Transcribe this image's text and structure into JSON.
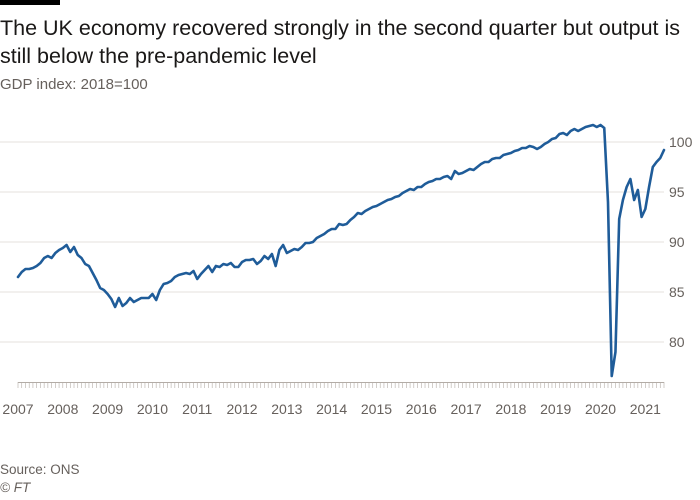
{
  "header": {
    "title": "The UK economy recovered strongly in the second quarter but output is still below the pre-pandemic level",
    "subtitle": "GDP index: 2018=100"
  },
  "footer": {
    "source": "Source: ONS",
    "credit": "© FT"
  },
  "colors": {
    "line": "#1f5c99",
    "grid": "#e6e1dc",
    "axis": "#b3aca6",
    "tick_label": "#66605c"
  },
  "chart_data": {
    "type": "line",
    "title": "The UK economy recovered strongly in the second quarter but output is still below the pre-pandemic level",
    "subtitle": "GDP index: 2018=100",
    "xlabel": "",
    "ylabel": "",
    "x_ticks": [
      "2007",
      "2008",
      "2009",
      "2010",
      "2011",
      "2012",
      "2013",
      "2014",
      "2015",
      "2016",
      "2017",
      "2018",
      "2019",
      "2020",
      "2021"
    ],
    "y_ticks": [
      80,
      85,
      90,
      95,
      100
    ],
    "xlim": [
      "2007-01",
      "2021-06"
    ],
    "ylim": [
      76,
      103
    ],
    "y_axis_side": "right",
    "grid": "horizontal",
    "series": [
      {
        "x": [
          "2007-01",
          "2007-02",
          "2007-03",
          "2007-04",
          "2007-05",
          "2007-06",
          "2007-07",
          "2007-08",
          "2007-09",
          "2007-10",
          "2007-11",
          "2007-12",
          "2008-01",
          "2008-02",
          "2008-03",
          "2008-04",
          "2008-05",
          "2008-06",
          "2008-07",
          "2008-08",
          "2008-09",
          "2008-10",
          "2008-11",
          "2008-12",
          "2009-01",
          "2009-02",
          "2009-03",
          "2009-04",
          "2009-05",
          "2009-06",
          "2009-07",
          "2009-08",
          "2009-09",
          "2009-10",
          "2009-11",
          "2009-12",
          "2010-01",
          "2010-02",
          "2010-03",
          "2010-04",
          "2010-05",
          "2010-06",
          "2010-07",
          "2010-08",
          "2010-09",
          "2010-10",
          "2010-11",
          "2010-12",
          "2011-01",
          "2011-02",
          "2011-03",
          "2011-04",
          "2011-05",
          "2011-06",
          "2011-07",
          "2011-08",
          "2011-09",
          "2011-10",
          "2011-11",
          "2011-12",
          "2012-01",
          "2012-02",
          "2012-03",
          "2012-04",
          "2012-05",
          "2012-06",
          "2012-07",
          "2012-08",
          "2012-09",
          "2012-10",
          "2012-11",
          "2012-12",
          "2013-01",
          "2013-02",
          "2013-03",
          "2013-04",
          "2013-05",
          "2013-06",
          "2013-07",
          "2013-08",
          "2013-09",
          "2013-10",
          "2013-11",
          "2013-12",
          "2014-01",
          "2014-02",
          "2014-03",
          "2014-04",
          "2014-05",
          "2014-06",
          "2014-07",
          "2014-08",
          "2014-09",
          "2014-10",
          "2014-11",
          "2014-12",
          "2015-01",
          "2015-02",
          "2015-03",
          "2015-04",
          "2015-05",
          "2015-06",
          "2015-07",
          "2015-08",
          "2015-09",
          "2015-10",
          "2015-11",
          "2015-12",
          "2016-01",
          "2016-02",
          "2016-03",
          "2016-04",
          "2016-05",
          "2016-06",
          "2016-07",
          "2016-08",
          "2016-09",
          "2016-10",
          "2016-11",
          "2016-12",
          "2017-01",
          "2017-02",
          "2017-03",
          "2017-04",
          "2017-05",
          "2017-06",
          "2017-07",
          "2017-08",
          "2017-09",
          "2017-10",
          "2017-11",
          "2017-12",
          "2018-01",
          "2018-02",
          "2018-03",
          "2018-04",
          "2018-05",
          "2018-06",
          "2018-07",
          "2018-08",
          "2018-09",
          "2018-10",
          "2018-11",
          "2018-12",
          "2019-01",
          "2019-02",
          "2019-03",
          "2019-04",
          "2019-05",
          "2019-06",
          "2019-07",
          "2019-08",
          "2019-09",
          "2019-10",
          "2019-11",
          "2019-12",
          "2020-01",
          "2020-02",
          "2020-03",
          "2020-04",
          "2020-05",
          "2020-06",
          "2020-07",
          "2020-08",
          "2020-09",
          "2020-10",
          "2020-11",
          "2020-12",
          "2021-01",
          "2021-02",
          "2021-03",
          "2021-04",
          "2021-05",
          "2021-06"
        ],
        "y": [
          86.5,
          87.0,
          87.3,
          87.3,
          87.4,
          87.6,
          87.9,
          88.4,
          88.6,
          88.4,
          88.9,
          89.2,
          89.4,
          89.7,
          89.0,
          89.5,
          88.7,
          88.4,
          87.8,
          87.6,
          86.9,
          86.2,
          85.4,
          85.2,
          84.8,
          84.3,
          83.5,
          84.4,
          83.6,
          83.9,
          84.4,
          84.0,
          84.2,
          84.4,
          84.4,
          84.4,
          84.8,
          84.2,
          85.2,
          85.8,
          85.9,
          86.1,
          86.5,
          86.7,
          86.8,
          86.9,
          86.8,
          87.1,
          86.3,
          86.8,
          87.2,
          87.6,
          87.0,
          87.6,
          87.5,
          87.8,
          87.7,
          87.9,
          87.5,
          87.5,
          88.0,
          88.2,
          88.2,
          88.3,
          87.8,
          88.1,
          88.6,
          88.3,
          88.8,
          87.6,
          89.2,
          89.7,
          88.9,
          89.1,
          89.3,
          89.2,
          89.5,
          89.9,
          89.9,
          90.0,
          90.4,
          90.6,
          90.8,
          91.1,
          91.3,
          91.3,
          91.8,
          91.7,
          91.8,
          92.2,
          92.5,
          92.9,
          92.8,
          93.1,
          93.3,
          93.5,
          93.6,
          93.8,
          94.0,
          94.2,
          94.3,
          94.5,
          94.6,
          94.9,
          95.1,
          95.3,
          95.2,
          95.5,
          95.5,
          95.8,
          96.0,
          96.1,
          96.3,
          96.3,
          96.5,
          96.6,
          96.3,
          97.1,
          96.8,
          96.9,
          97.1,
          97.3,
          97.2,
          97.5,
          97.8,
          98.0,
          98.0,
          98.3,
          98.4,
          98.4,
          98.7,
          98.8,
          98.9,
          99.1,
          99.2,
          99.4,
          99.4,
          99.6,
          99.5,
          99.3,
          99.5,
          99.8,
          100.0,
          100.3,
          100.4,
          100.8,
          100.9,
          100.7,
          101.1,
          101.3,
          101.1,
          101.3,
          101.5,
          101.6,
          101.7,
          101.5,
          101.7,
          101.4,
          94.0,
          76.6,
          79.0,
          92.3,
          94.2,
          95.5,
          96.3,
          94.2,
          95.2,
          92.5,
          93.3,
          95.5,
          97.5,
          98.0,
          98.4,
          99.2
        ]
      }
    ]
  }
}
